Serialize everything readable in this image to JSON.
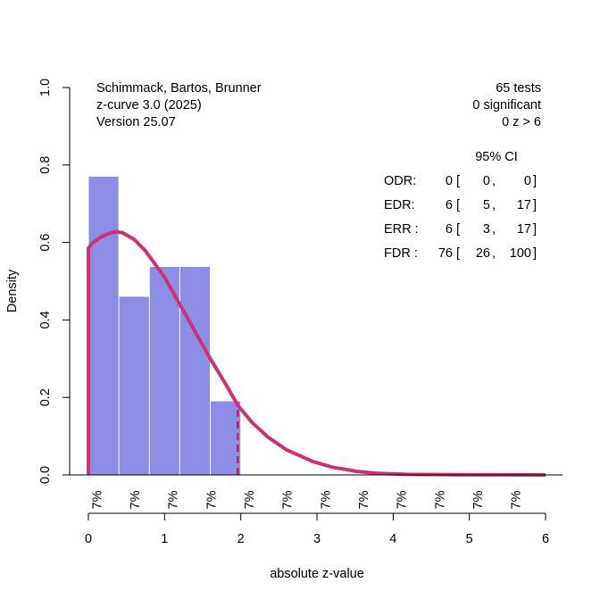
{
  "chart_data": {
    "type": "bar",
    "subtype": "histogram-with-density-curve",
    "xlabel": "absolute z-value",
    "ylabel": "Density",
    "xlim": [
      0,
      6
    ],
    "ylim": [
      0,
      1
    ],
    "x_ticks": [
      "0",
      "1",
      "2",
      "3",
      "4",
      "5",
      "6"
    ],
    "y_ticks": [
      "0.0",
      "0.2",
      "0.4",
      "0.6",
      "0.8",
      "1.0"
    ],
    "histogram": {
      "bin_edges": [
        0,
        0.4,
        0.8,
        1.2,
        1.6,
        2.0
      ],
      "values": [
        0.77,
        0.46,
        0.537,
        0.537,
        0.19
      ],
      "color": "#8d8de6"
    },
    "density_curve": {
      "color": "#cc3377",
      "x": [
        0,
        0.05,
        0.15,
        0.25,
        0.36,
        0.45,
        0.6,
        0.75,
        0.89,
        1.0,
        1.2,
        1.4,
        1.6,
        1.8,
        1.96,
        2.15,
        2.36,
        2.6,
        2.94,
        3.2,
        3.53,
        3.8,
        4.2,
        5.0,
        6.0
      ],
      "y": [
        0.585,
        0.598,
        0.612,
        0.622,
        0.628,
        0.625,
        0.608,
        0.578,
        0.54,
        0.51,
        0.44,
        0.37,
        0.3,
        0.235,
        0.18,
        0.135,
        0.097,
        0.065,
        0.035,
        0.02,
        0.009,
        0.004,
        0.0015,
        0.0003,
        0.0
      ]
    },
    "critical_line": {
      "x": 1.96,
      "color": "#cc2244",
      "style": "dashed"
    },
    "bin_percent_labels": {
      "x": [
        0.25,
        0.75,
        1.25,
        1.75,
        2.25,
        2.75,
        3.25,
        3.75,
        4.25,
        4.75,
        5.25,
        5.75
      ],
      "labels": [
        "7%",
        "7%",
        "7%",
        "7%",
        "7%",
        "7%",
        "7%",
        "7%",
        "7%",
        "7%",
        "7%",
        "7%"
      ]
    },
    "annotations": {
      "top_left": [
        "Schimmack, Bartos, Brunner",
        "z-curve 3.0 (2025)",
        "Version 25.07"
      ],
      "top_right": [
        "65 tests",
        "0 significant",
        "0 z > 6"
      ],
      "ci_header": "95% CI",
      "stats": [
        {
          "label": "ODR:",
          "value": "0",
          "lo": "0",
          "hi": "0"
        },
        {
          "label": "EDR:",
          "value": "6",
          "lo": "5",
          "hi": "17"
        },
        {
          "label": "ERR :",
          "value": "6",
          "lo": "3",
          "hi": "17"
        },
        {
          "label": "FDR :",
          "value": "76",
          "lo": "26",
          "hi": "100"
        }
      ]
    }
  }
}
